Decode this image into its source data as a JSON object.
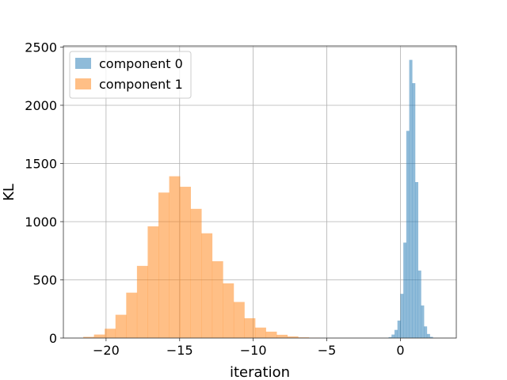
{
  "chart_data": {
    "type": "histogram",
    "xlabel": "iteration",
    "ylabel": "KL",
    "xlim": [
      -22.9,
      3.8
    ],
    "ylim": [
      0,
      2510
    ],
    "grid": true,
    "legend_position": "top-left",
    "x_ticks": [
      {
        "value": -20,
        "label": "−20"
      },
      {
        "value": -15,
        "label": "−15"
      },
      {
        "value": -10,
        "label": "−10"
      },
      {
        "value": -5,
        "label": "−5"
      },
      {
        "value": 0,
        "label": "0"
      }
    ],
    "y_ticks": [
      {
        "value": 0,
        "label": "0"
      },
      {
        "value": 500,
        "label": "500"
      },
      {
        "value": 1000,
        "label": "1000"
      },
      {
        "value": 1500,
        "label": "1500"
      },
      {
        "value": 2000,
        "label": "2000"
      },
      {
        "value": 2500,
        "label": "2500"
      }
    ],
    "series": [
      {
        "name": "component 0",
        "color": "#1f77b4",
        "opacity": 0.5,
        "bin_start": -0.8,
        "bin_width": 0.2,
        "counts": [
          8,
          30,
          70,
          150,
          380,
          820,
          1780,
          2390,
          2190,
          1340,
          580,
          280,
          100,
          35,
          10
        ]
      },
      {
        "name": "component 1",
        "color": "#ff7f0e",
        "opacity": 0.5,
        "bin_start": -21.55,
        "bin_width": 0.73,
        "counts": [
          10,
          30,
          80,
          200,
          390,
          620,
          960,
          1250,
          1390,
          1300,
          1110,
          900,
          660,
          470,
          310,
          170,
          90,
          55,
          28,
          14,
          6,
          3
        ]
      }
    ]
  }
}
